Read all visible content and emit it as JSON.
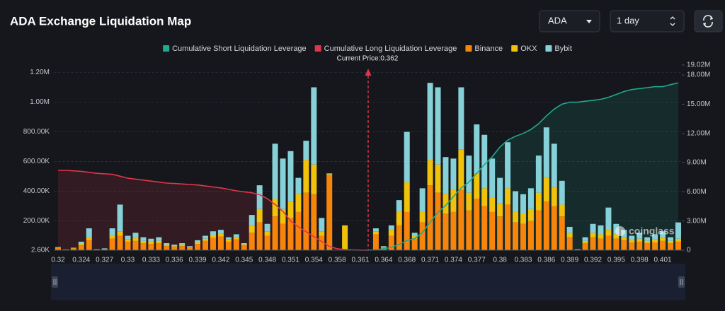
{
  "header": {
    "title": "ADA Exchange Liquidation Map",
    "coin": "ADA",
    "period": "1 day"
  },
  "watermark": "coinglass",
  "chart_data": {
    "type": "bar",
    "stacked": true,
    "annotation": "Current Price:0.362",
    "categories": [
      "0.32",
      null,
      null,
      "0.324",
      null,
      null,
      "0.327",
      null,
      null,
      "0.33",
      null,
      null,
      "0.333",
      null,
      null,
      "0.336",
      null,
      null,
      "0.339",
      null,
      null,
      "0.342",
      null,
      null,
      "0.345",
      null,
      null,
      "0.348",
      null,
      null,
      "0.351",
      null,
      null,
      "0.354",
      null,
      null,
      "0.358",
      null,
      null,
      "0.361",
      null,
      null,
      "0.364",
      null,
      null,
      "0.368",
      null,
      null,
      "0.371",
      null,
      null,
      "0.374",
      null,
      null,
      "0.377",
      null,
      null,
      "0.38",
      null,
      null,
      "0.383",
      null,
      null,
      "0.386",
      null,
      null,
      "0.389",
      null,
      null,
      "0.392",
      null,
      null,
      "0.395",
      null,
      null,
      "0.398",
      null,
      null,
      "0.401",
      null,
      null
    ],
    "ylim": [
      2600,
      1250000
    ],
    "yticks": [
      {
        "value": 2600,
        "label": "2.60K"
      },
      {
        "value": 200000,
        "label": "200.00K"
      },
      {
        "value": 400000,
        "label": "400.00K"
      },
      {
        "value": 600000,
        "label": "600.00K"
      },
      {
        "value": 800000,
        "label": "800.00K"
      },
      {
        "value": 1000000,
        "label": "1.00M"
      },
      {
        "value": 1200000,
        "label": "1.20M"
      }
    ],
    "y2lim": [
      0,
      19020000
    ],
    "y2ticks": [
      0,
      {
        "value": 3000000,
        "label": "3.00M"
      },
      {
        "value": 6000000,
        "label": "6.00M"
      },
      {
        "value": 9000000,
        "label": "9.00M"
      },
      {
        "value": 12000000,
        "label": "12.00M"
      },
      {
        "value": 15000000,
        "label": "15.00M"
      },
      {
        "value": 18000000,
        "label": "18.00M"
      },
      {
        "value": 19020000,
        "label": "19.02M"
      }
    ],
    "grid": true,
    "series": [
      {
        "name": "Cumulative Short Liquidation Leverage",
        "type": "line",
        "axis": "y2",
        "color": "#1fa98e",
        "values": [
          null,
          null,
          null,
          null,
          null,
          null,
          null,
          null,
          null,
          null,
          null,
          null,
          null,
          null,
          null,
          null,
          null,
          null,
          null,
          null,
          null,
          null,
          null,
          null,
          null,
          null,
          null,
          null,
          null,
          null,
          null,
          null,
          null,
          null,
          null,
          null,
          null,
          null,
          null,
          null,
          0,
          50000,
          150000,
          300000,
          600000,
          1000000,
          1200000,
          1800000,
          2900000,
          3900000,
          4600000,
          5500000,
          6400000,
          7000000,
          7900000,
          8800000,
          9600000,
          10600000,
          11300000,
          11700000,
          12000000,
          12400000,
          13000000,
          13800000,
          14500000,
          15000000,
          15200000,
          15200000,
          15300000,
          15400000,
          15500000,
          15700000,
          16000000,
          16300000,
          16500000,
          16600000,
          16700000,
          16800000,
          16800000,
          17000000,
          17200000
        ]
      },
      {
        "name": "Cumulative Long Liquidation Leverage",
        "type": "line",
        "axis": "y2",
        "color": "#e0364a",
        "values": [
          8200000,
          8200000,
          8150000,
          8100000,
          8000000,
          7900000,
          7850000,
          7800000,
          7600000,
          7400000,
          7300000,
          7200000,
          7100000,
          7000000,
          6900000,
          6850000,
          6800000,
          6750000,
          6700000,
          6600000,
          6500000,
          6400000,
          6250000,
          6100000,
          6000000,
          5900000,
          5700000,
          5300000,
          4700000,
          4000000,
          3000000,
          2400000,
          1900000,
          1400000,
          900000,
          400000,
          150000,
          80000,
          30000,
          10000,
          0,
          null,
          null,
          null,
          null,
          null,
          null,
          null,
          null,
          null,
          null,
          null,
          null,
          null,
          null,
          null,
          null,
          null,
          null,
          null,
          null,
          null,
          null,
          null,
          null,
          null,
          null,
          null,
          null,
          null,
          null,
          null,
          null,
          null,
          null,
          null,
          null,
          null,
          null,
          null,
          null
        ]
      },
      {
        "name": "Binance",
        "type": "bar",
        "color": "#f7850c",
        "values": [
          20000,
          6000,
          15000,
          35000,
          70000,
          8000,
          10000,
          80000,
          100000,
          60000,
          65000,
          50000,
          45000,
          50000,
          30000,
          25000,
          30000,
          20000,
          45000,
          65000,
          85000,
          95000,
          60000,
          75000,
          35000,
          120000,
          190000,
          100000,
          230000,
          180000,
          220000,
          260000,
          390000,
          380000,
          100000,
          510000,
          0,
          0,
          2000,
          1000,
          1000,
          110000,
          20000,
          100000,
          170000,
          260000,
          80000,
          190000,
          440000,
          390000,
          250000,
          260000,
          410000,
          270000,
          350000,
          300000,
          260000,
          230000,
          310000,
          190000,
          180000,
          200000,
          270000,
          330000,
          300000,
          230000,
          90000,
          6000,
          50000,
          90000,
          80000,
          100000,
          80000,
          70000,
          55000,
          60000,
          50000,
          55000,
          65000,
          50000,
          60000
        ]
      },
      {
        "name": "OKX",
        "type": "bar",
        "color": "#f0c20b",
        "values": [
          3000,
          1000,
          3000,
          10000,
          20000,
          1000,
          2000,
          20000,
          30000,
          15000,
          20000,
          15000,
          15000,
          15000,
          10000,
          5000,
          10000,
          5000,
          10000,
          15000,
          20000,
          20000,
          15000,
          15000,
          8000,
          50000,
          90000,
          30000,
          120000,
          100000,
          110000,
          120000,
          220000,
          200000,
          30000,
          5000,
          0,
          170000,
          1000,
          1000,
          1000,
          20000,
          5000,
          40000,
          90000,
          200000,
          20000,
          70000,
          170000,
          190000,
          130000,
          150000,
          270000,
          120000,
          170000,
          120000,
          100000,
          90000,
          110000,
          70000,
          70000,
          80000,
          120000,
          160000,
          130000,
          80000,
          30000,
          2000,
          15000,
          30000,
          30000,
          40000,
          30000,
          20000,
          15000,
          20000,
          15000,
          20000,
          20000,
          15000,
          20000
        ]
      },
      {
        "name": "Bybit",
        "type": "bar",
        "color": "#86d0d8",
        "values": [
          2000,
          1000,
          2000,
          15000,
          60000,
          1000,
          3000,
          50000,
          180000,
          25000,
          35000,
          25000,
          20000,
          25000,
          10000,
          10000,
          10000,
          5000,
          15000,
          20000,
          25000,
          25000,
          15000,
          20000,
          7000,
          70000,
          160000,
          50000,
          370000,
          340000,
          340000,
          110000,
          130000,
          520000,
          90000,
          5000,
          0,
          0,
          0,
          0,
          0,
          20000,
          5000,
          30000,
          80000,
          340000,
          20000,
          160000,
          520000,
          520000,
          250000,
          210000,
          420000,
          250000,
          330000,
          360000,
          260000,
          170000,
          310000,
          140000,
          130000,
          140000,
          250000,
          340000,
          290000,
          160000,
          40000,
          2000,
          25000,
          60000,
          60000,
          150000,
          70000,
          50000,
          30000,
          40000,
          25000,
          35000,
          45000,
          25000,
          110000
        ]
      }
    ]
  }
}
